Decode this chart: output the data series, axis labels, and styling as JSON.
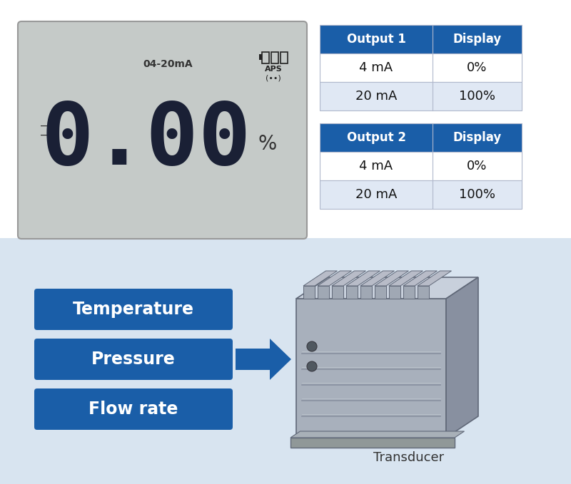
{
  "bg_color": "#ffffff",
  "top_section_bg": "#c5cac8",
  "bottom_section_bg": "#d8e4f0",
  "display_text": "0.00",
  "display_label": "04-20mA",
  "percent_sign": "%",
  "table1_header": [
    "Output 1",
    "Display"
  ],
  "table2_header": [
    "Output 2",
    "Display"
  ],
  "table_rows": [
    [
      "4 mA",
      "0%"
    ],
    [
      "20 mA",
      "100%"
    ]
  ],
  "header_bg": "#1a5ea8",
  "header_fg": "#ffffff",
  "row1_bg": "#ffffff",
  "row2_bg": "#e0e8f4",
  "cell_border": "#b0b8cc",
  "label_texts": [
    "Temperature",
    "Pressure",
    "Flow rate"
  ],
  "label_bg": "#1a5ea8",
  "label_fg": "#ffffff",
  "arrow_color": "#1a5ea8",
  "transducer_label": "Transducer",
  "aps_text": "APS",
  "wireless_text": "(••)",
  "lcd_color": "#1a2035",
  "panel_border": "#999999"
}
